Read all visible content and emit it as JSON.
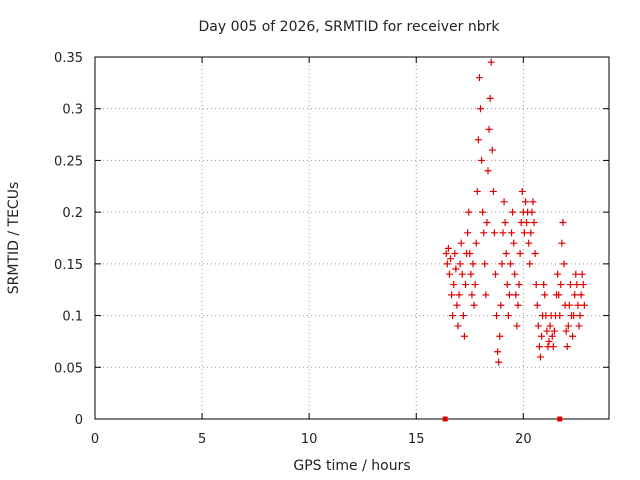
{
  "chart_data": {
    "type": "scatter",
    "title": "Day 005 of 2026, SRMTID for receiver nbrk",
    "xlabel": "GPS time / hours",
    "ylabel": "SRMTID / TECUs",
    "xlim": [
      0,
      24
    ],
    "ylim": [
      0,
      0.35
    ],
    "xticks": [
      0,
      5,
      10,
      15,
      20
    ],
    "yticks": [
      0,
      0.05,
      0.1,
      0.15,
      0.2,
      0.25,
      0.3,
      0.35
    ],
    "ytick_labels": [
      "0",
      "0.05",
      "0.1",
      "0.15",
      "0.2",
      "0.25",
      "0.3",
      "0.35"
    ],
    "grid": true,
    "grid_style": "dotted",
    "marker": "+",
    "color": "#e00000",
    "zero_markers": [
      {
        "x": 16.35,
        "y": 0
      },
      {
        "x": 21.7,
        "y": 0
      }
    ],
    "series": [
      {
        "values": [
          [
            16.4,
            0.16
          ],
          [
            16.45,
            0.15
          ],
          [
            16.5,
            0.165
          ],
          [
            16.55,
            0.14
          ],
          [
            16.6,
            0.155
          ],
          [
            16.65,
            0.12
          ],
          [
            16.7,
            0.1
          ],
          [
            16.75,
            0.13
          ],
          [
            16.8,
            0.16
          ],
          [
            16.85,
            0.145
          ],
          [
            16.9,
            0.11
          ],
          [
            16.95,
            0.09
          ],
          [
            17.0,
            0.12
          ],
          [
            17.05,
            0.15
          ],
          [
            17.1,
            0.17
          ],
          [
            17.15,
            0.14
          ],
          [
            17.2,
            0.1
          ],
          [
            17.25,
            0.08
          ],
          [
            17.3,
            0.13
          ],
          [
            17.35,
            0.16
          ],
          [
            17.4,
            0.18
          ],
          [
            17.45,
            0.2
          ],
          [
            17.5,
            0.16
          ],
          [
            17.55,
            0.14
          ],
          [
            17.6,
            0.12
          ],
          [
            17.65,
            0.15
          ],
          [
            17.7,
            0.11
          ],
          [
            17.75,
            0.13
          ],
          [
            17.8,
            0.17
          ],
          [
            17.85,
            0.22
          ],
          [
            17.9,
            0.27
          ],
          [
            17.95,
            0.33
          ],
          [
            18.0,
            0.3
          ],
          [
            18.05,
            0.25
          ],
          [
            18.1,
            0.2
          ],
          [
            18.15,
            0.18
          ],
          [
            18.2,
            0.15
          ],
          [
            18.25,
            0.12
          ],
          [
            18.3,
            0.19
          ],
          [
            18.35,
            0.24
          ],
          [
            18.4,
            0.28
          ],
          [
            18.45,
            0.31
          ],
          [
            18.5,
            0.345
          ],
          [
            18.55,
            0.26
          ],
          [
            18.6,
            0.22
          ],
          [
            18.65,
            0.18
          ],
          [
            18.7,
            0.14
          ],
          [
            18.75,
            0.1
          ],
          [
            18.8,
            0.065
          ],
          [
            18.85,
            0.055
          ],
          [
            18.9,
            0.08
          ],
          [
            18.95,
            0.11
          ],
          [
            19.0,
            0.15
          ],
          [
            19.05,
            0.18
          ],
          [
            19.1,
            0.21
          ],
          [
            19.15,
            0.19
          ],
          [
            19.2,
            0.16
          ],
          [
            19.25,
            0.13
          ],
          [
            19.3,
            0.1
          ],
          [
            19.35,
            0.12
          ],
          [
            19.4,
            0.15
          ],
          [
            19.45,
            0.18
          ],
          [
            19.5,
            0.2
          ],
          [
            19.55,
            0.17
          ],
          [
            19.6,
            0.14
          ],
          [
            19.65,
            0.12
          ],
          [
            19.7,
            0.09
          ],
          [
            19.75,
            0.11
          ],
          [
            19.8,
            0.13
          ],
          [
            19.85,
            0.16
          ],
          [
            19.9,
            0.19
          ],
          [
            19.95,
            0.22
          ],
          [
            20.0,
            0.2
          ],
          [
            20.05,
            0.18
          ],
          [
            20.1,
            0.21
          ],
          [
            20.15,
            0.19
          ],
          [
            20.2,
            0.2
          ],
          [
            20.25,
            0.17
          ],
          [
            20.3,
            0.15
          ],
          [
            20.35,
            0.18
          ],
          [
            20.4,
            0.2
          ],
          [
            20.45,
            0.21
          ],
          [
            20.5,
            0.19
          ],
          [
            20.55,
            0.16
          ],
          [
            20.6,
            0.13
          ],
          [
            20.65,
            0.11
          ],
          [
            20.7,
            0.09
          ],
          [
            20.75,
            0.07
          ],
          [
            20.8,
            0.06
          ],
          [
            20.85,
            0.08
          ],
          [
            20.9,
            0.1
          ],
          [
            20.95,
            0.13
          ],
          [
            21.0,
            0.12
          ],
          [
            21.05,
            0.1
          ],
          [
            21.1,
            0.085
          ],
          [
            21.15,
            0.07
          ],
          [
            21.2,
            0.075
          ],
          [
            21.25,
            0.09
          ],
          [
            21.3,
            0.1
          ],
          [
            21.35,
            0.08
          ],
          [
            21.4,
            0.07
          ],
          [
            21.45,
            0.085
          ],
          [
            21.5,
            0.1
          ],
          [
            21.55,
            0.12
          ],
          [
            21.6,
            0.14
          ],
          [
            21.65,
            0.12
          ],
          [
            21.7,
            0.1
          ],
          [
            21.75,
            0.13
          ],
          [
            21.8,
            0.17
          ],
          [
            21.85,
            0.19
          ],
          [
            21.9,
            0.15
          ],
          [
            21.95,
            0.11
          ],
          [
            22.0,
            0.085
          ],
          [
            22.05,
            0.07
          ],
          [
            22.1,
            0.09
          ],
          [
            22.15,
            0.11
          ],
          [
            22.2,
            0.13
          ],
          [
            22.25,
            0.1
          ],
          [
            22.3,
            0.08
          ],
          [
            22.35,
            0.1
          ],
          [
            22.4,
            0.12
          ],
          [
            22.45,
            0.14
          ],
          [
            22.5,
            0.13
          ],
          [
            22.55,
            0.11
          ],
          [
            22.6,
            0.09
          ],
          [
            22.65,
            0.1
          ],
          [
            22.7,
            0.12
          ],
          [
            22.75,
            0.14
          ],
          [
            22.8,
            0.13
          ],
          [
            22.85,
            0.11
          ]
        ]
      }
    ]
  }
}
